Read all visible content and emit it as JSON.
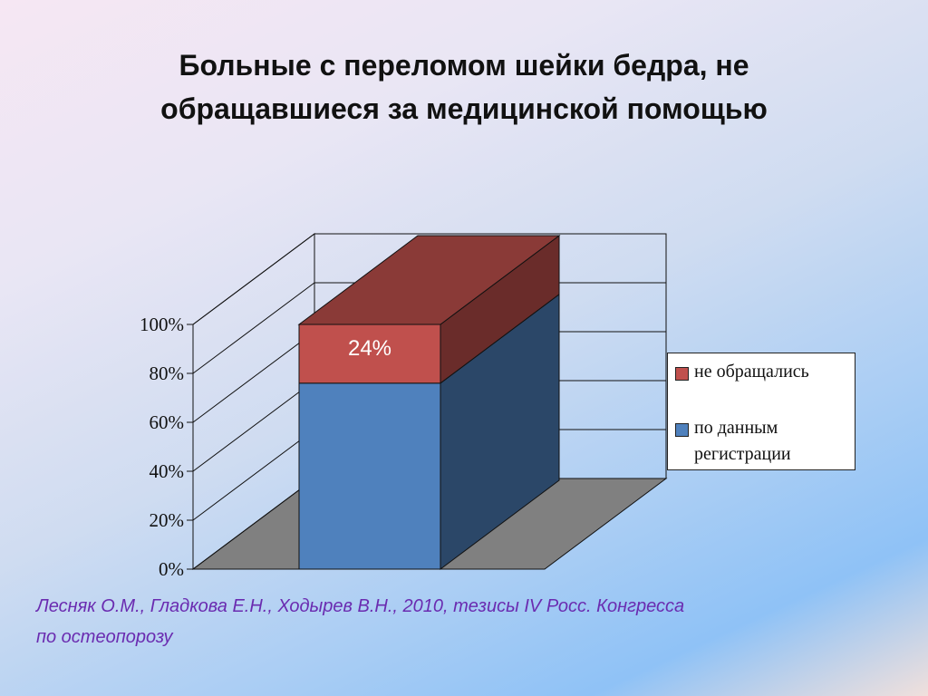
{
  "slide": {
    "title_lines": [
      "Больные с переломом шейки бедра, не",
      "обращавшиеся за медицинской помощью"
    ],
    "citation_lines": [
      "Лесняк О.М., Гладкова Е.Н., Ходырев В.Н., 2010, тезисы IV Росс. Конгресса",
      "по остеопорозу"
    ]
  },
  "chart_data": {
    "type": "bar",
    "stacked": true,
    "view": "3d",
    "title": "",
    "xlabel": "",
    "ylabel": "",
    "ylim": [
      0,
      100
    ],
    "yticks": [
      "0%",
      "20%",
      "40%",
      "60%",
      "80%",
      "100%"
    ],
    "categories": [
      ""
    ],
    "series": [
      {
        "name": "по данным регистрации",
        "values": [
          76
        ],
        "color": "#4f81bd"
      },
      {
        "name": "не обращались",
        "values": [
          24
        ],
        "color": "#c0504d",
        "data_label": "24%"
      }
    ],
    "legend": {
      "position": "right",
      "items": [
        {
          "label_lines": [
            "не обращались"
          ],
          "color": "#c0504d"
        },
        {
          "label_lines": [
            "по данным",
            "регистрации"
          ],
          "color": "#4f81bd"
        }
      ]
    },
    "grid": true
  }
}
